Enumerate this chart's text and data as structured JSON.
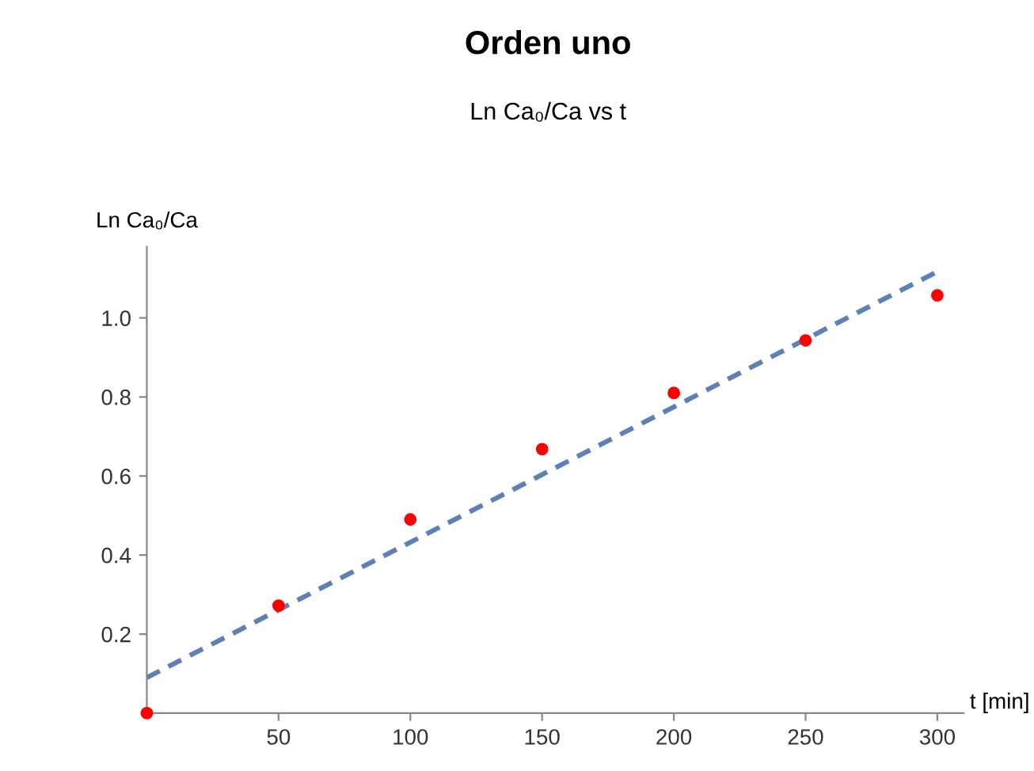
{
  "chart_data": {
    "type": "scatter",
    "title": "Orden uno",
    "subtitle": "Ln Ca₀/Ca vs t",
    "xlabel": "t [min]",
    "ylabel": "Ln Ca₀/Ca",
    "x": [
      0,
      50,
      100,
      150,
      200,
      250,
      300
    ],
    "series": [
      {
        "color": "#ff0000",
        "marker": "circle",
        "values": [
          0,
          0.272,
          0.49,
          0.668,
          0.81,
          0.943,
          1.057
        ]
      },
      {
        "type": "line",
        "color": "#5e81b5",
        "line_style": "dashed",
        "x": [
          0,
          300
        ],
        "values": [
          0.09,
          1.117
        ]
      }
    ],
    "xlim": [
      0,
      310
    ],
    "ylim": [
      0,
      1.18
    ],
    "xticks": [
      50,
      100,
      150,
      200,
      250,
      300
    ],
    "yticks": [
      0.2,
      0.4,
      0.6,
      0.8,
      {
        "value": 1.0,
        "label": "1.0"
      }
    ],
    "grid": false,
    "legend": false
  }
}
